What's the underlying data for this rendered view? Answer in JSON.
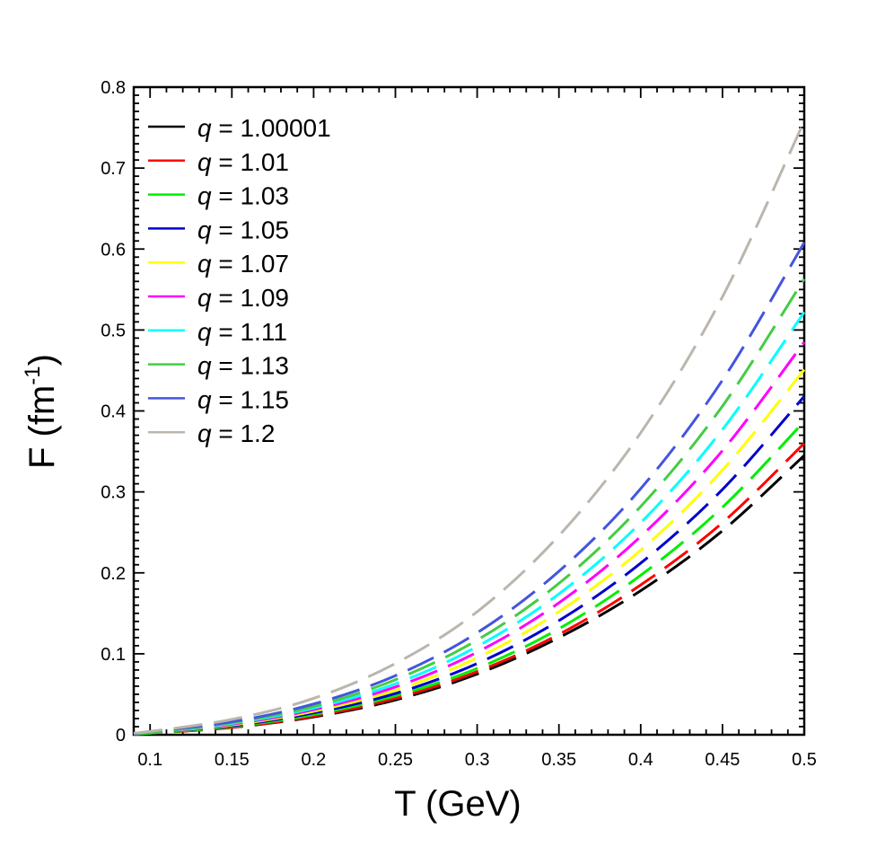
{
  "chart_data": {
    "type": "line",
    "title": "",
    "xlabel": "T (GeV)",
    "ylabel_main": "F (fm",
    "ylabel_sup": "-1",
    "ylabel_close": ")",
    "xlim": [
      0.09,
      0.5
    ],
    "ylim": [
      0,
      0.8
    ],
    "x_ticks": [
      {
        "value": 0.1,
        "label": "0.1"
      },
      {
        "value": 0.15,
        "label": "0.15"
      },
      {
        "value": 0.2,
        "label": "0.2"
      },
      {
        "value": 0.25,
        "label": "0.25"
      },
      {
        "value": 0.3,
        "label": "0.3"
      },
      {
        "value": 0.35,
        "label": "0.35"
      },
      {
        "value": 0.4,
        "label": "0.4"
      },
      {
        "value": 0.45,
        "label": "0.45"
      },
      {
        "value": 0.5,
        "label": "0.5"
      }
    ],
    "y_ticks": [
      {
        "value": 0,
        "label": "0"
      },
      {
        "value": 0.1,
        "label": "0.1"
      },
      {
        "value": 0.2,
        "label": "0.2"
      },
      {
        "value": 0.3,
        "label": "0.3"
      },
      {
        "value": 0.4,
        "label": "0.4"
      },
      {
        "value": 0.5,
        "label": "0.5"
      },
      {
        "value": 0.6,
        "label": "0.6"
      },
      {
        "value": 0.7,
        "label": "0.7"
      },
      {
        "value": 0.8,
        "label": "0.8"
      }
    ],
    "legend_position": "top-left",
    "legend_symbol": "q",
    "x": [
      0.09,
      0.1,
      0.15,
      0.2,
      0.25,
      0.3,
      0.35,
      0.4,
      0.45,
      0.5
    ],
    "series": [
      {
        "name": "q = 1.00001",
        "q_text": "q",
        "value_text": " = 1.00001",
        "color": "#000000",
        "values": [
          0.001,
          0.002,
          0.009,
          0.022,
          0.043,
          0.075,
          0.12,
          0.178,
          0.252,
          0.345
        ]
      },
      {
        "name": "q = 1.01",
        "q_text": "q",
        "value_text": " = 1.01",
        "color": "#ff0000",
        "values": [
          0.001,
          0.002,
          0.009,
          0.023,
          0.045,
          0.078,
          0.124,
          0.185,
          0.262,
          0.36
        ]
      },
      {
        "name": "q = 1.03",
        "q_text": "q",
        "value_text": " = 1.03",
        "color": "#00ee00",
        "values": [
          0.001,
          0.002,
          0.01,
          0.025,
          0.048,
          0.082,
          0.131,
          0.197,
          0.281,
          0.387
        ]
      },
      {
        "name": "q = 1.05",
        "q_text": "q",
        "value_text": " = 1.05",
        "color": "#0000cc",
        "values": [
          0.001,
          0.003,
          0.011,
          0.027,
          0.051,
          0.088,
          0.141,
          0.212,
          0.303,
          0.418
        ]
      },
      {
        "name": "q = 1.07",
        "q_text": "q",
        "value_text": " = 1.07",
        "color": "#ffff00",
        "values": [
          0.001,
          0.003,
          0.012,
          0.029,
          0.055,
          0.095,
          0.152,
          0.228,
          0.327,
          0.451
        ]
      },
      {
        "name": "q = 1.09",
        "q_text": "q",
        "value_text": " = 1.09",
        "color": "#ff00ff",
        "values": [
          0.001,
          0.003,
          0.013,
          0.031,
          0.059,
          0.102,
          0.163,
          0.245,
          0.351,
          0.485
        ]
      },
      {
        "name": "q = 1.11",
        "q_text": "q",
        "value_text": " = 1.11",
        "color": "#00ffff",
        "values": [
          0.001,
          0.003,
          0.014,
          0.033,
          0.063,
          0.109,
          0.174,
          0.262,
          0.377,
          0.522
        ]
      },
      {
        "name": "q = 1.13",
        "q_text": "q",
        "value_text": " = 1.13",
        "color": "#44cc44",
        "values": [
          0.001,
          0.003,
          0.015,
          0.035,
          0.068,
          0.117,
          0.187,
          0.282,
          0.406,
          0.563
        ]
      },
      {
        "name": "q = 1.15",
        "q_text": "q",
        "value_text": " = 1.15",
        "color": "#4455dd",
        "values": [
          0.001,
          0.004,
          0.016,
          0.038,
          0.073,
          0.126,
          0.202,
          0.304,
          0.438,
          0.608
        ]
      },
      {
        "name": "q = 1.2",
        "q_text": "q",
        "value_text": " = 1.2",
        "color": "#bbb5ad",
        "values": [
          0.002,
          0.004,
          0.019,
          0.045,
          0.088,
          0.152,
          0.246,
          0.373,
          0.541,
          0.758
        ]
      }
    ]
  }
}
